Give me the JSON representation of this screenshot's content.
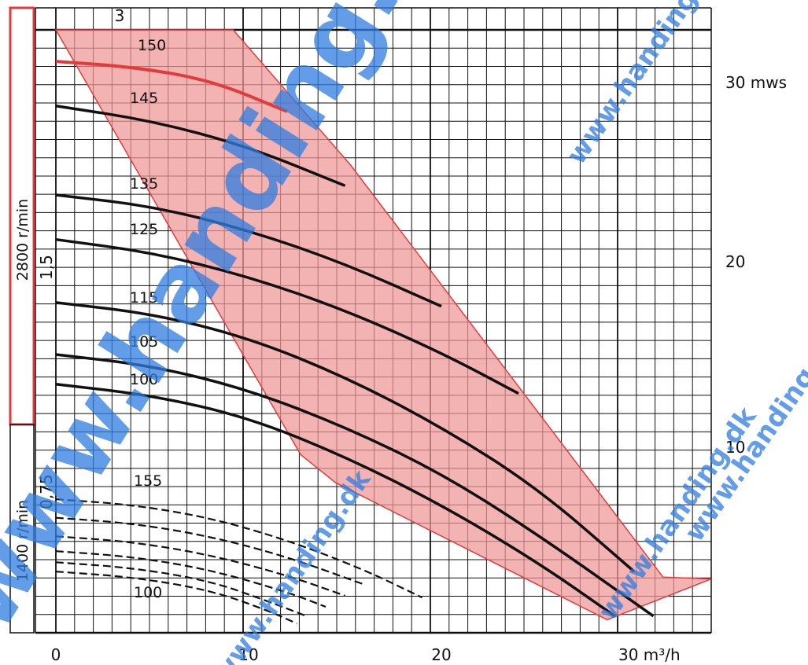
{
  "chart_data": {
    "type": "line",
    "x_axis": {
      "ticks": [
        0,
        10,
        20
      ],
      "end_label": "30 m³/h",
      "end_value": 30,
      "range": [
        0,
        34
      ]
    },
    "y_axis_right": {
      "ticks": [
        10,
        20
      ],
      "end_label": "30 mws",
      "end_value": 30,
      "range": [
        0,
        32.5
      ]
    },
    "y_axis_left": {
      "ticks": [
        "0,75",
        "1,5",
        "3"
      ],
      "tick_values": [
        7.6,
        19.7,
        32.5
      ]
    },
    "speed_labels": {
      "high": "2800 r/min",
      "low": "1400 r/min"
    },
    "high_speed_curves": [
      {
        "name": "150",
        "highlight": true,
        "points": [
          [
            0,
            30.8
          ],
          [
            4,
            30.5
          ],
          [
            8,
            29.8
          ],
          [
            12,
            28.1
          ]
        ]
      },
      {
        "name": "145",
        "points": [
          [
            0,
            28.4
          ],
          [
            5,
            27.6
          ],
          [
            10,
            26.2
          ],
          [
            15,
            24.1
          ]
        ]
      },
      {
        "name": "135",
        "points": [
          [
            0,
            23.6
          ],
          [
            5,
            23.0
          ],
          [
            10,
            21.7
          ],
          [
            15,
            19.9
          ],
          [
            20,
            17.6
          ]
        ]
      },
      {
        "name": "125",
        "points": [
          [
            0,
            21.2
          ],
          [
            5,
            20.5
          ],
          [
            10,
            19.2
          ],
          [
            15,
            17.4
          ],
          [
            20,
            15.1
          ],
          [
            24,
            12.9
          ]
        ]
      },
      {
        "name": "115",
        "points": [
          [
            0,
            17.8
          ],
          [
            5,
            17.2
          ],
          [
            10,
            15.9
          ],
          [
            15,
            13.8
          ],
          [
            20,
            11.1
          ],
          [
            25,
            7.8
          ],
          [
            30,
            3.3
          ]
        ]
      },
      {
        "name": "105",
        "points": [
          [
            0,
            15.0
          ],
          [
            5,
            14.4
          ],
          [
            10,
            13.1
          ],
          [
            15,
            11.1
          ],
          [
            20,
            8.6
          ],
          [
            25,
            5.3
          ],
          [
            31,
            0.9
          ]
        ]
      },
      {
        "name": "100",
        "points": [
          [
            0,
            13.4
          ],
          [
            5,
            12.8
          ],
          [
            10,
            11.6
          ],
          [
            15,
            9.5
          ],
          [
            20,
            6.9
          ],
          [
            25,
            3.8
          ],
          [
            29,
            0.9
          ]
        ]
      }
    ],
    "low_speed_curves": [
      {
        "name": "155",
        "points": [
          [
            0,
            7.2
          ],
          [
            4,
            6.9
          ],
          [
            8,
            6.2
          ],
          [
            12,
            5.0
          ],
          [
            16,
            3.4
          ],
          [
            19,
            1.9
          ]
        ]
      },
      {
        "name": "",
        "points": [
          [
            0,
            6.2
          ],
          [
            4,
            5.9
          ],
          [
            8,
            5.2
          ],
          [
            12,
            4.1
          ],
          [
            16,
            2.6
          ]
        ]
      },
      {
        "name": "",
        "points": [
          [
            0,
            5.2
          ],
          [
            4,
            4.9
          ],
          [
            8,
            4.2
          ],
          [
            12,
            3.1
          ],
          [
            15,
            2.0
          ]
        ]
      },
      {
        "name": "",
        "points": [
          [
            0,
            4.4
          ],
          [
            4,
            4.1
          ],
          [
            8,
            3.4
          ],
          [
            12,
            2.2
          ],
          [
            14,
            1.4
          ]
        ]
      },
      {
        "name": "",
        "points": [
          [
            0,
            3.8
          ],
          [
            4,
            3.5
          ],
          [
            8,
            2.8
          ],
          [
            11,
            1.7
          ],
          [
            13,
            0.9
          ]
        ]
      },
      {
        "name": "100",
        "points": [
          [
            0,
            3.3
          ],
          [
            4,
            3.0
          ],
          [
            8,
            2.3
          ],
          [
            11,
            1.2
          ],
          [
            12.5,
            0.5
          ]
        ]
      }
    ],
    "operating_region": [
      [
        0,
        32.5
      ],
      [
        9.2,
        32.5
      ],
      [
        15.3,
        25.2
      ],
      [
        31.5,
        3.0
      ],
      [
        34,
        2.9
      ],
      [
        28.6,
        0.7
      ],
      [
        14.5,
        8.1
      ],
      [
        12.7,
        9.6
      ],
      [
        0,
        32.5
      ]
    ],
    "highlight_color": "#e23b3b",
    "region_color": "#f09595",
    "grid": true,
    "watermark": "www.handing.dk"
  }
}
